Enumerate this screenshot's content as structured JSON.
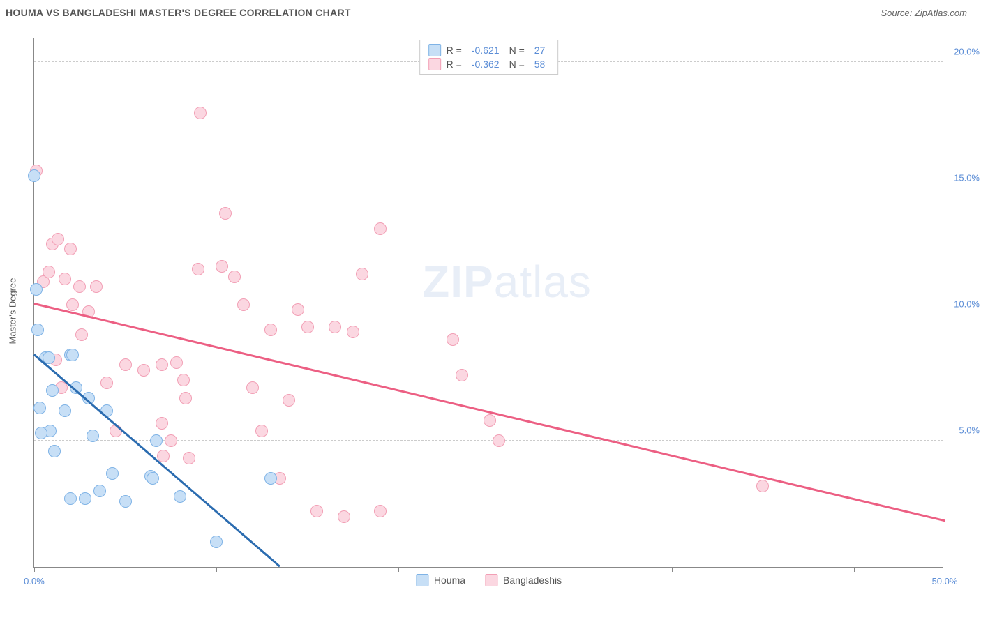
{
  "header": {
    "title": "HOUMA VS BANGLADESHI MASTER'S DEGREE CORRELATION CHART",
    "source_prefix": "Source: ",
    "source_link": "ZipAtlas.com"
  },
  "watermark": {
    "zip": "ZIP",
    "atlas": "atlas"
  },
  "chart": {
    "type": "scatter",
    "ylabel": "Master's Degree",
    "xlim": [
      0,
      50
    ],
    "ylim": [
      0,
      21
    ],
    "x_axis": {
      "ticks": [
        0,
        5,
        10,
        15,
        20,
        25,
        30,
        35,
        40,
        45,
        50
      ],
      "labels": {
        "0": "0.0%",
        "50": "50.0%"
      }
    },
    "y_axis": {
      "gridlines": [
        5,
        10,
        15,
        20
      ],
      "labels": {
        "5": "5.0%",
        "10": "10.0%",
        "15": "15.0%",
        "20": "20.0%"
      }
    },
    "marker_radius": 9,
    "marker_stroke_width": 1.5,
    "line_width": 2.5,
    "series": {
      "houma": {
        "label": "Houma",
        "fill": "#c7dff6",
        "stroke": "#7fb3e6",
        "line_color": "#2b6cb0",
        "r_value": "-0.621",
        "n_value": "27",
        "trend": {
          "x1": 0,
          "y1": 8.4,
          "x2": 13.5,
          "y2": 0
        },
        "points": [
          [
            0.0,
            15.5
          ],
          [
            0.1,
            11.0
          ],
          [
            0.2,
            9.4
          ],
          [
            0.6,
            8.3
          ],
          [
            0.8,
            8.3
          ],
          [
            0.3,
            6.3
          ],
          [
            1.0,
            7.0
          ],
          [
            1.7,
            6.2
          ],
          [
            0.9,
            5.4
          ],
          [
            0.4,
            5.3
          ],
          [
            1.1,
            4.6
          ],
          [
            2.0,
            8.4
          ],
          [
            2.1,
            8.4
          ],
          [
            2.3,
            7.1
          ],
          [
            3.0,
            6.7
          ],
          [
            3.2,
            5.2
          ],
          [
            4.0,
            6.2
          ],
          [
            4.3,
            3.7
          ],
          [
            3.6,
            3.0
          ],
          [
            2.8,
            2.7
          ],
          [
            2.0,
            2.7
          ],
          [
            5.0,
            2.6
          ],
          [
            6.4,
            3.6
          ],
          [
            6.5,
            3.5
          ],
          [
            6.7,
            5.0
          ],
          [
            8.0,
            2.8
          ],
          [
            10.0,
            1.0
          ],
          [
            13.0,
            3.5
          ]
        ]
      },
      "bangladeshis": {
        "label": "Bangladeshis",
        "fill": "#fbd7e1",
        "stroke": "#f29fb5",
        "line_color": "#ec5f83",
        "r_value": "-0.362",
        "n_value": "58",
        "trend": {
          "x1": 0,
          "y1": 10.4,
          "x2": 50,
          "y2": 1.8
        },
        "points": [
          [
            0.1,
            15.7
          ],
          [
            0.5,
            11.3
          ],
          [
            0.8,
            11.7
          ],
          [
            1.0,
            12.8
          ],
          [
            1.3,
            13.0
          ],
          [
            1.7,
            11.4
          ],
          [
            2.0,
            12.6
          ],
          [
            2.1,
            10.4
          ],
          [
            2.5,
            11.1
          ],
          [
            2.6,
            9.2
          ],
          [
            3.0,
            10.1
          ],
          [
            3.4,
            11.1
          ],
          [
            1.2,
            8.2
          ],
          [
            1.5,
            7.1
          ],
          [
            4.0,
            7.3
          ],
          [
            4.5,
            5.4
          ],
          [
            5.0,
            8.0
          ],
          [
            6.0,
            7.8
          ],
          [
            7.0,
            8.0
          ],
          [
            7.0,
            5.7
          ],
          [
            7.1,
            4.4
          ],
          [
            7.5,
            5.0
          ],
          [
            7.8,
            8.1
          ],
          [
            8.2,
            7.4
          ],
          [
            8.3,
            6.7
          ],
          [
            8.5,
            4.3
          ],
          [
            9.0,
            11.8
          ],
          [
            9.1,
            18.0
          ],
          [
            10.3,
            11.9
          ],
          [
            10.5,
            14.0
          ],
          [
            11.0,
            11.5
          ],
          [
            11.5,
            10.4
          ],
          [
            12.0,
            7.1
          ],
          [
            12.5,
            5.4
          ],
          [
            13.0,
            9.4
          ],
          [
            13.5,
            3.5
          ],
          [
            14.0,
            6.6
          ],
          [
            14.5,
            10.2
          ],
          [
            15.0,
            9.5
          ],
          [
            15.5,
            2.2
          ],
          [
            16.5,
            9.5
          ],
          [
            17.0,
            2.0
          ],
          [
            17.5,
            9.3
          ],
          [
            18.0,
            11.6
          ],
          [
            19.0,
            13.4
          ],
          [
            19.0,
            2.2
          ],
          [
            23.0,
            9.0
          ],
          [
            23.5,
            7.6
          ],
          [
            25.0,
            5.8
          ],
          [
            25.5,
            5.0
          ],
          [
            40.0,
            3.2
          ]
        ]
      }
    }
  },
  "legend_top": {
    "r_label": "R =",
    "n_label": "N ="
  }
}
